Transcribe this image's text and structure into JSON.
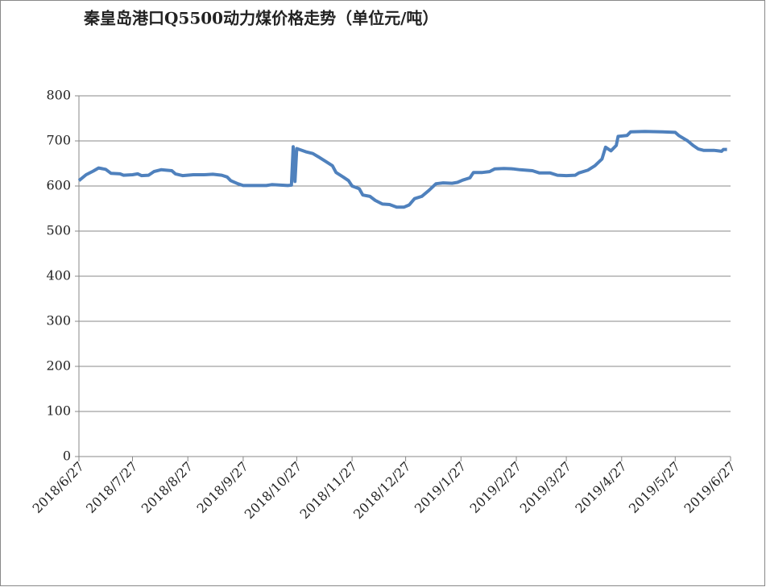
{
  "chart_data": {
    "type": "line",
    "title": "秦皇岛港口Q5500动力煤价格走势（单位元/吨）",
    "x": [
      "2018/6/27",
      "2018/7/1",
      "2018/7/5",
      "2018/7/8",
      "2018/7/12",
      "2018/7/15",
      "2018/7/20",
      "2018/7/22",
      "2018/7/27",
      "2018/7/30",
      "2018/8/1",
      "2018/8/5",
      "2018/8/8",
      "2018/8/12",
      "2018/8/18",
      "2018/8/20",
      "2018/8/24",
      "2018/8/30",
      "2018/9/5",
      "2018/9/10",
      "2018/9/15",
      "2018/9/18",
      "2018/9/20",
      "2018/9/24",
      "2018/9/27",
      "2018/10/5",
      "2018/10/10",
      "2018/10/13",
      "2018/10/18",
      "2018/10/22",
      "2018/10/24",
      "2018/10/25",
      "2018/10/26",
      "2018/10/27",
      "2018/11/1",
      "2018/11/5",
      "2018/11/8",
      "2018/11/12",
      "2018/11/16",
      "2018/11/18",
      "2018/11/22",
      "2018/11/25",
      "2018/11/27",
      "2018/12/1",
      "2018/12/3",
      "2018/12/7",
      "2018/12/10",
      "2018/12/14",
      "2018/12/18",
      "2018/12/22",
      "2018/12/26",
      "2018/12/29",
      "2019/1/1",
      "2019/1/5",
      "2019/1/9",
      "2019/1/13",
      "2019/1/17",
      "2019/1/22",
      "2019/1/25",
      "2019/1/28",
      "2019/2/1",
      "2019/2/3",
      "2019/2/8",
      "2019/2/12",
      "2019/2/15",
      "2019/2/20",
      "2019/2/25",
      "2019/3/1",
      "2019/3/8",
      "2019/3/12",
      "2019/3/18",
      "2019/3/22",
      "2019/3/27",
      "2019/4/1",
      "2019/4/3",
      "2019/4/8",
      "2019/4/12",
      "2019/4/16",
      "2019/4/18",
      "2019/4/21",
      "2019/4/24",
      "2019/4/25",
      "2019/4/30",
      "2019/5/2",
      "2019/5/10",
      "2019/5/20",
      "2019/5/27",
      "2019/5/29",
      "2019/6/3",
      "2019/6/6",
      "2019/6/9",
      "2019/6/12",
      "2019/6/18",
      "2019/6/22",
      "2019/6/23",
      "2019/6/25"
    ],
    "values": [
      612,
      625,
      633,
      640,
      637,
      628,
      627,
      624,
      625,
      627,
      623,
      624,
      632,
      636,
      634,
      627,
      623,
      625,
      625,
      626,
      624,
      620,
      612,
      605,
      601,
      601,
      601,
      603,
      602,
      601,
      602,
      687,
      610,
      683,
      676,
      672,
      665,
      655,
      645,
      630,
      620,
      612,
      600,
      594,
      580,
      577,
      568,
      560,
      559,
      553,
      553,
      558,
      572,
      577,
      590,
      605,
      607,
      606,
      608,
      613,
      618,
      630,
      630,
      632,
      638,
      639,
      638,
      636,
      634,
      629,
      629,
      624,
      623,
      624,
      629,
      635,
      645,
      660,
      686,
      678,
      690,
      710,
      712,
      720,
      721,
      720,
      719,
      712,
      700,
      690,
      682,
      679,
      679,
      677,
      681,
      681
    ],
    "color": "#4f81bd",
    "xlim": [
      "2018/6/27",
      "2019/6/27"
    ],
    "xticks": [
      "2018/6/27",
      "2018/7/27",
      "2018/8/27",
      "2018/9/27",
      "2018/10/27",
      "2018/11/27",
      "2018/12/27",
      "2019/1/27",
      "2019/2/27",
      "2019/3/27",
      "2019/4/27",
      "2019/5/27",
      "2019/6/27"
    ],
    "ylim": [
      0,
      800
    ],
    "yticks": [
      0,
      100,
      200,
      300,
      400,
      500,
      600,
      700,
      800
    ],
    "grid": true
  }
}
